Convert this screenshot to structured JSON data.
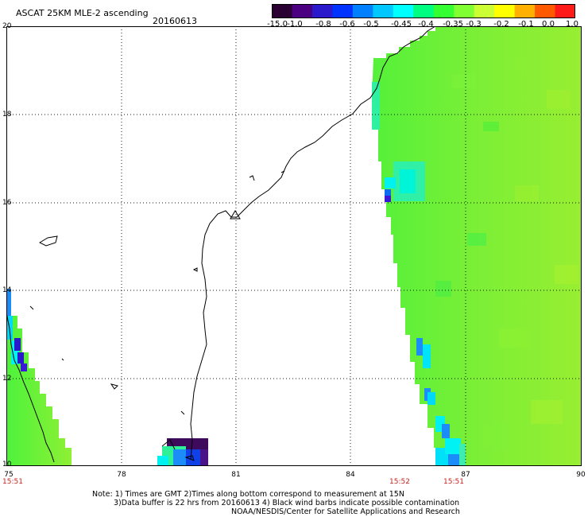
{
  "header": {
    "title": "ASCAT 25KM MLE-2 ascending",
    "date": "20160613"
  },
  "colorbar": {
    "ticks": [
      "-15.0",
      "-1.0",
      "-0.8",
      "-0.6",
      "-0.5",
      "-0.45",
      "-0.4",
      "-0.35",
      "-0.3",
      "-0.2",
      "-0.1",
      "0.0",
      "1.0"
    ],
    "colors": [
      "#2a0033",
      "#4b0082",
      "#2a1acc",
      "#0033ff",
      "#0080ff",
      "#00c8ff",
      "#00ffff",
      "#00ff80",
      "#33ff33",
      "#80ff33",
      "#ccff33",
      "#ffff00",
      "#ffb000",
      "#ff5a00",
      "#ff1a1a"
    ]
  },
  "axes": {
    "x_ticks": [
      "75",
      "78",
      "81",
      "84",
      "87",
      "90"
    ],
    "y_ticks": [
      "20",
      "18",
      "16",
      "14",
      "12",
      "10"
    ]
  },
  "time_labels": [
    "15:51",
    "15:52",
    "15:51"
  ],
  "notes": {
    "line1": "Note: 1) Times are GMT 2)Times along bottom correspond to measurement at 15N",
    "line2": "3)Data buffer is 22 hrs from 20160613 4) Black wind barbs indicate possible contamination",
    "line3": "NOAA/NESDIS/Center for Satellite Applications and Research"
  }
}
